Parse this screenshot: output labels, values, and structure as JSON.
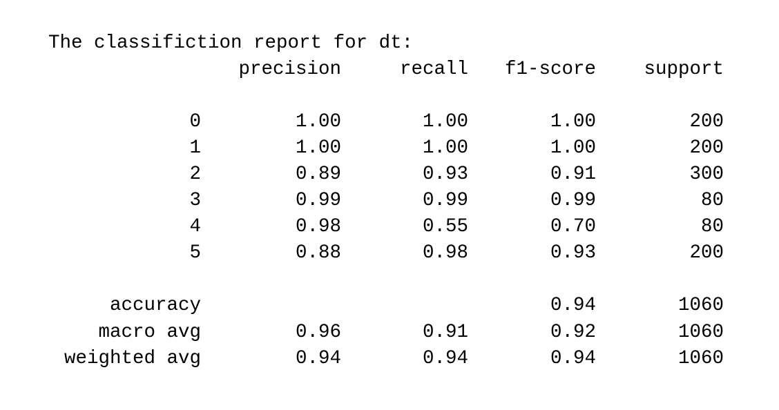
{
  "report": {
    "title": "The classifiction report for dt:",
    "header": {
      "precision": "precision",
      "recall": "recall",
      "f1": "f1-score",
      "support": "support"
    },
    "classes": [
      {
        "label": "0",
        "precision": "1.00",
        "recall": "1.00",
        "f1": "1.00",
        "support": "200"
      },
      {
        "label": "1",
        "precision": "1.00",
        "recall": "1.00",
        "f1": "1.00",
        "support": "200"
      },
      {
        "label": "2",
        "precision": "0.89",
        "recall": "0.93",
        "f1": "0.91",
        "support": "300"
      },
      {
        "label": "3",
        "precision": "0.99",
        "recall": "0.99",
        "f1": "0.99",
        "support": "80"
      },
      {
        "label": "4",
        "precision": "0.98",
        "recall": "0.55",
        "f1": "0.70",
        "support": "80"
      },
      {
        "label": "5",
        "precision": "0.88",
        "recall": "0.98",
        "f1": "0.93",
        "support": "200"
      }
    ],
    "summary": [
      {
        "label": "accuracy",
        "precision": "",
        "recall": "",
        "f1": "0.94",
        "support": "1060"
      },
      {
        "label": "macro avg",
        "precision": "0.96",
        "recall": "0.91",
        "f1": "0.92",
        "support": "1060"
      },
      {
        "label": "weighted avg",
        "precision": "0.94",
        "recall": "0.94",
        "f1": "0.94",
        "support": "1060"
      }
    ]
  }
}
